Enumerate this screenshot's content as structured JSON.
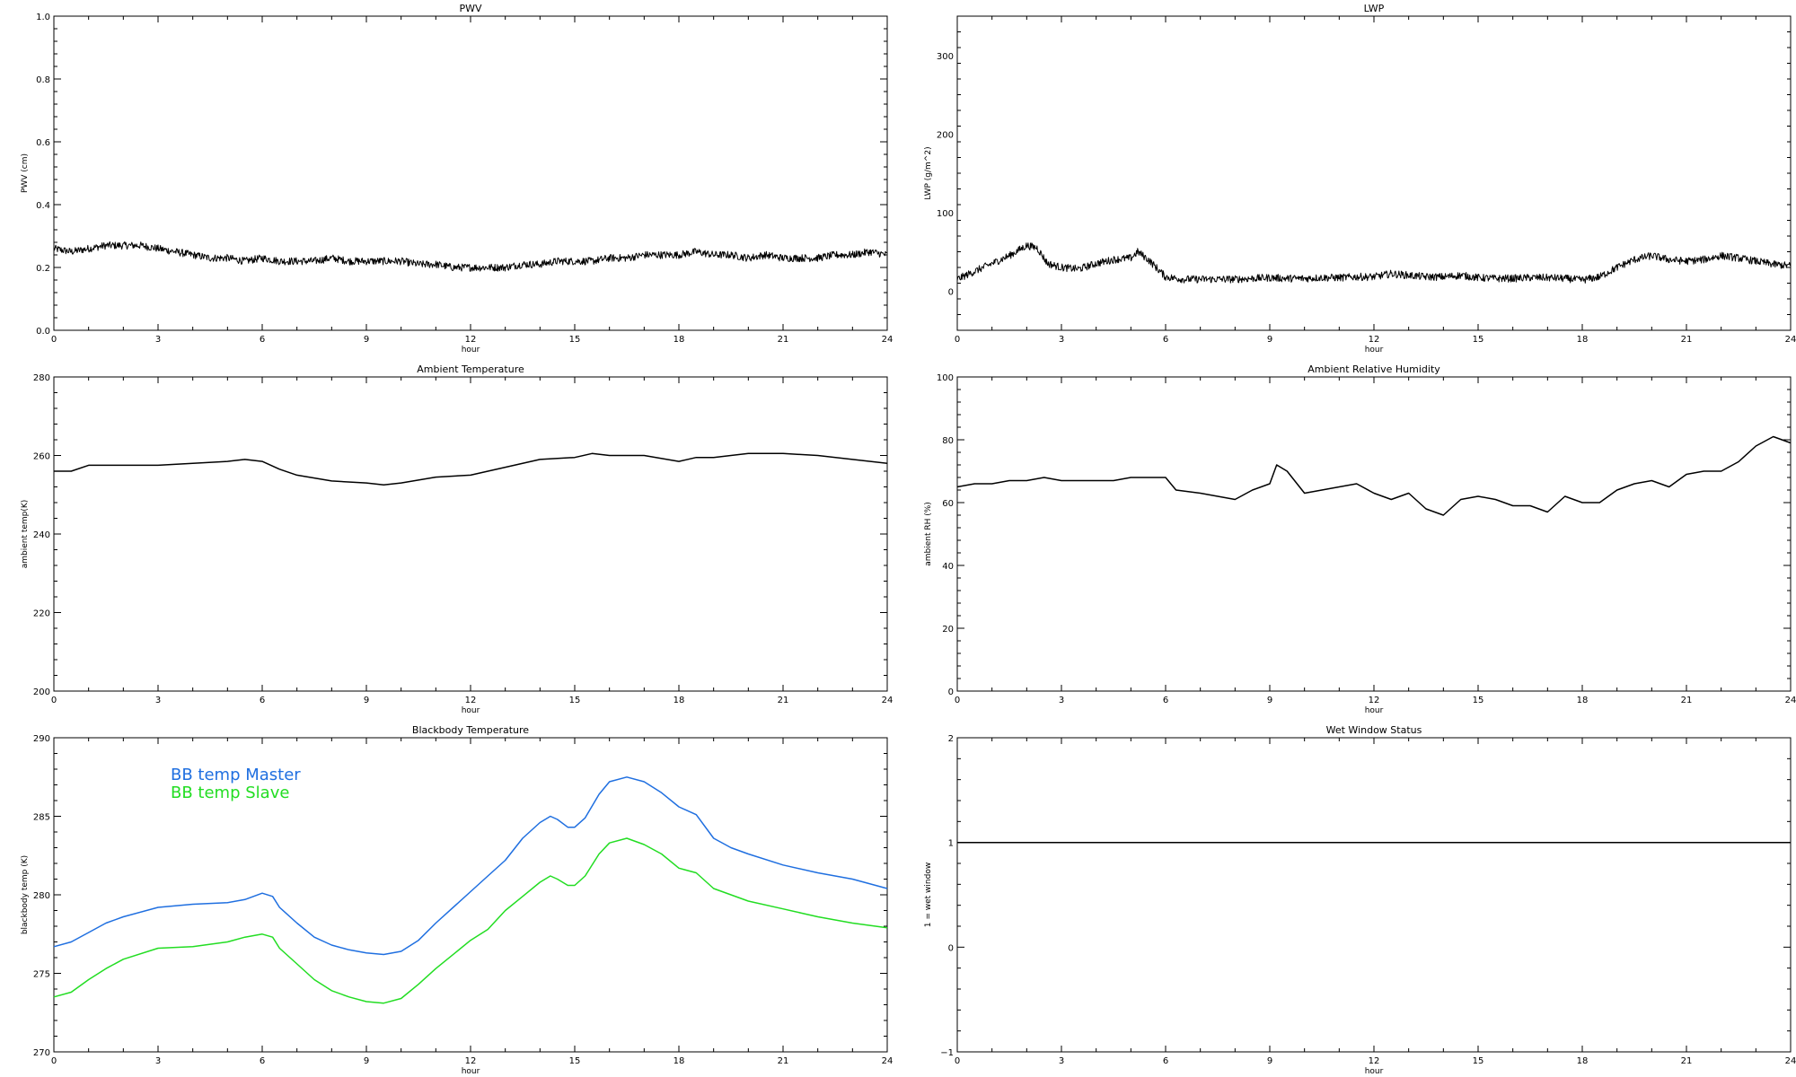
{
  "chart_data": [
    {
      "id": "pwv",
      "type": "line",
      "title": "PWV",
      "xlabel": "hour",
      "ylabel": "PWV (cm)",
      "xlim": [
        0,
        24
      ],
      "ylim": [
        0.0,
        1.0
      ],
      "xticks": [
        0,
        3,
        6,
        9,
        12,
        15,
        18,
        21,
        24
      ],
      "xticklabels": [
        "0",
        "3",
        "6",
        "9",
        "12",
        "15",
        "18",
        "21",
        "24"
      ],
      "yticks": [
        0.0,
        0.2,
        0.4,
        0.6,
        0.8,
        1.0
      ],
      "yticklabels": [
        "0.0",
        "0.2",
        "0.4",
        "0.6",
        "0.8",
        "1.0"
      ],
      "legend": null,
      "series": [
        {
          "color": "#000000",
          "noisy": true,
          "x": [
            0,
            0.5,
            1,
            1.5,
            2,
            2.5,
            3,
            3.5,
            4,
            4.5,
            5,
            5.5,
            6,
            6.5,
            7,
            7.5,
            8,
            8.5,
            9,
            9.5,
            10,
            10.5,
            11,
            11.5,
            12,
            12.5,
            13,
            13.5,
            14,
            14.5,
            15,
            15.5,
            16,
            16.5,
            17,
            17.5,
            18,
            18.5,
            19,
            19.5,
            20,
            20.5,
            21,
            21.5,
            22,
            22.5,
            23,
            23.5,
            24
          ],
          "y": [
            0.26,
            0.25,
            0.26,
            0.27,
            0.27,
            0.27,
            0.26,
            0.25,
            0.24,
            0.23,
            0.23,
            0.22,
            0.23,
            0.22,
            0.22,
            0.22,
            0.23,
            0.22,
            0.22,
            0.22,
            0.22,
            0.21,
            0.21,
            0.2,
            0.2,
            0.2,
            0.2,
            0.21,
            0.21,
            0.22,
            0.22,
            0.22,
            0.23,
            0.23,
            0.24,
            0.24,
            0.24,
            0.25,
            0.24,
            0.24,
            0.23,
            0.24,
            0.23,
            0.23,
            0.23,
            0.24,
            0.24,
            0.25,
            0.24
          ]
        }
      ]
    },
    {
      "id": "lwp",
      "type": "line",
      "title": "LWP",
      "xlabel": "hour",
      "ylabel": "LWP (g/m^2)",
      "xlim": [
        0,
        24
      ],
      "ylim": [
        -50,
        350
      ],
      "xticks": [
        0,
        3,
        6,
        9,
        12,
        15,
        18,
        21,
        24
      ],
      "xticklabels": [
        "0",
        "3",
        "6",
        "9",
        "12",
        "15",
        "18",
        "21",
        "24"
      ],
      "yticks": [
        0,
        100,
        200,
        300
      ],
      "yticklabels": [
        "0",
        "100",
        "200",
        "300"
      ],
      "legend": null,
      "series": [
        {
          "color": "#000000",
          "noisy": true,
          "x": [
            0,
            0.5,
            1,
            1.5,
            2,
            2.3,
            2.6,
            3,
            3.5,
            4,
            4.5,
            5,
            5.2,
            5.5,
            6,
            6.5,
            7,
            7.5,
            8,
            8.5,
            9,
            9.5,
            10,
            10.5,
            11,
            11.5,
            12,
            12.5,
            13,
            13.5,
            14,
            14.5,
            15,
            15.5,
            16,
            16.5,
            17,
            17.5,
            18,
            18.5,
            19,
            19.5,
            20,
            20.5,
            21,
            21.5,
            22,
            22.5,
            23,
            23.5,
            24
          ],
          "y": [
            15,
            25,
            35,
            45,
            58,
            55,
            35,
            30,
            28,
            35,
            40,
            42,
            50,
            40,
            18,
            15,
            15,
            15,
            15,
            16,
            17,
            16,
            16,
            17,
            17,
            18,
            18,
            22,
            20,
            18,
            18,
            20,
            17,
            16,
            16,
            17,
            17,
            16,
            14,
            18,
            30,
            40,
            45,
            40,
            38,
            40,
            45,
            42,
            38,
            34,
            32
          ]
        }
      ]
    },
    {
      "id": "ambient_temp",
      "type": "line",
      "title": "Ambient Temperature",
      "xlabel": "hour",
      "ylabel": "ambient temp(K)",
      "xlim": [
        0,
        24
      ],
      "ylim": [
        200,
        280
      ],
      "xticks": [
        0,
        3,
        6,
        9,
        12,
        15,
        18,
        21,
        24
      ],
      "xticklabels": [
        "0",
        "3",
        "6",
        "9",
        "12",
        "15",
        "18",
        "21",
        "24"
      ],
      "yticks": [
        200,
        220,
        240,
        260,
        280
      ],
      "yticklabels": [
        "200",
        "220",
        "240",
        "260",
        "280"
      ],
      "legend": null,
      "series": [
        {
          "color": "#000000",
          "noisy": false,
          "x": [
            0,
            0.5,
            1,
            1.5,
            2,
            3,
            4,
            5,
            5.5,
            6,
            6.5,
            7,
            8,
            9,
            9.5,
            10,
            11,
            12,
            13,
            14,
            15,
            15.5,
            16,
            17,
            18,
            18.5,
            19,
            20,
            21,
            22,
            23,
            24
          ],
          "y": [
            256,
            256,
            257.5,
            257.5,
            257.5,
            257.5,
            258,
            258.5,
            259,
            258.5,
            256.5,
            255,
            253.5,
            253,
            252.5,
            253,
            254.5,
            255,
            257,
            259,
            259.5,
            260.5,
            260,
            260,
            258.5,
            259.5,
            259.5,
            260.5,
            260.5,
            260,
            259,
            258
          ]
        }
      ]
    },
    {
      "id": "ambient_rh",
      "type": "line",
      "title": "Ambient Relative Humidity",
      "xlabel": "hour",
      "ylabel": "ambient RH (%)",
      "xlim": [
        0,
        24
      ],
      "ylim": [
        0,
        100
      ],
      "xticks": [
        0,
        3,
        6,
        9,
        12,
        15,
        18,
        21,
        24
      ],
      "xticklabels": [
        "0",
        "3",
        "6",
        "9",
        "12",
        "15",
        "18",
        "21",
        "24"
      ],
      "yticks": [
        0,
        20,
        40,
        60,
        80,
        100
      ],
      "yticklabels": [
        "0",
        "20",
        "40",
        "60",
        "80",
        "100"
      ],
      "legend": null,
      "series": [
        {
          "color": "#000000",
          "noisy": false,
          "x": [
            0,
            0.5,
            1,
            1.5,
            2,
            2.5,
            3,
            3.5,
            4,
            4.5,
            5,
            5.5,
            6,
            6.3,
            7,
            7.5,
            8,
            8.5,
            9,
            9.2,
            9.5,
            10,
            10.5,
            11,
            11.5,
            12,
            12.5,
            13,
            13.5,
            14,
            14.5,
            15,
            15.5,
            16,
            16.5,
            17,
            17.5,
            18,
            18.5,
            19,
            19.5,
            20,
            20.5,
            21,
            21.5,
            22,
            22.5,
            23,
            23.5,
            24
          ],
          "y": [
            65,
            66,
            66,
            67,
            67,
            68,
            67,
            67,
            67,
            67,
            68,
            68,
            68,
            64,
            63,
            62,
            61,
            64,
            66,
            72,
            70,
            63,
            64,
            65,
            66,
            63,
            61,
            63,
            58,
            56,
            61,
            62,
            61,
            59,
            59,
            57,
            62,
            60,
            60,
            64,
            66,
            67,
            65,
            69,
            70,
            70,
            73,
            78,
            81,
            79
          ]
        }
      ]
    },
    {
      "id": "blackbody_temp",
      "type": "line",
      "title": "Blackbody Temperature",
      "xlabel": "hour",
      "ylabel": "blackbody temp (K)",
      "xlim": [
        0,
        24
      ],
      "ylim": [
        270,
        290
      ],
      "xticks": [
        0,
        3,
        6,
        9,
        12,
        15,
        18,
        21,
        24
      ],
      "xticklabels": [
        "0",
        "3",
        "6",
        "9",
        "12",
        "15",
        "18",
        "21",
        "24"
      ],
      "yticks": [
        270,
        275,
        280,
        285,
        290
      ],
      "yticklabels": [
        "270",
        "275",
        "280",
        "285",
        "290"
      ],
      "legend": "top-left",
      "series": [
        {
          "name": "BB temp Master",
          "color": "#1f6fe0",
          "noisy": false,
          "x": [
            0,
            0.5,
            1,
            1.5,
            2,
            3,
            4,
            5,
            5.5,
            6,
            6.3,
            6.5,
            7,
            7.5,
            8,
            8.5,
            9,
            9.5,
            10,
            10.5,
            11,
            12,
            12.5,
            13,
            13.5,
            14,
            14.3,
            14.5,
            14.8,
            15,
            15.3,
            15.7,
            16,
            16.5,
            17,
            17.5,
            18,
            18.5,
            19,
            19.5,
            20,
            21,
            22,
            23,
            24
          ],
          "y": [
            276.7,
            277,
            277.6,
            278.2,
            278.6,
            279.2,
            279.4,
            279.5,
            279.7,
            280.1,
            279.9,
            279.2,
            278.2,
            277.3,
            276.8,
            276.5,
            276.3,
            276.2,
            276.4,
            277.1,
            278.2,
            280.2,
            281.2,
            282.2,
            283.6,
            284.6,
            285,
            284.8,
            284.3,
            284.3,
            284.9,
            286.4,
            287.2,
            287.5,
            287.2,
            286.5,
            285.6,
            285.1,
            283.6,
            283,
            282.6,
            281.9,
            281.4,
            281,
            280.4
          ]
        },
        {
          "name": "BB temp Slave",
          "color": "#22dd22",
          "noisy": false,
          "x": [
            0,
            0.5,
            1,
            1.5,
            2,
            3,
            4,
            5,
            5.5,
            6,
            6.3,
            6.5,
            7,
            7.5,
            8,
            8.5,
            9,
            9.5,
            10,
            10.5,
            11,
            12,
            12.5,
            13,
            13.5,
            14,
            14.3,
            14.5,
            14.8,
            15,
            15.3,
            15.7,
            16,
            16.5,
            17,
            17.5,
            18,
            18.5,
            19,
            19.5,
            20,
            21,
            22,
            23,
            24
          ],
          "y": [
            273.5,
            273.8,
            274.6,
            275.3,
            275.9,
            276.6,
            276.7,
            277,
            277.3,
            277.5,
            277.3,
            276.6,
            275.6,
            274.6,
            273.9,
            273.5,
            273.2,
            273.1,
            273.4,
            274.3,
            275.3,
            277.1,
            277.8,
            279,
            279.9,
            280.8,
            281.2,
            281,
            280.6,
            280.6,
            281.2,
            282.6,
            283.3,
            283.6,
            283.2,
            282.6,
            281.7,
            281.4,
            280.4,
            280,
            279.6,
            279.1,
            278.6,
            278.2,
            277.9
          ]
        }
      ]
    },
    {
      "id": "wet_window",
      "type": "line",
      "title": "Wet Window Status",
      "xlabel": "hour",
      "ylabel": "1 = wet window",
      "xlim": [
        0,
        24
      ],
      "ylim": [
        -1,
        2
      ],
      "xticks": [
        0,
        3,
        6,
        9,
        12,
        15,
        18,
        21,
        24
      ],
      "xticklabels": [
        "0",
        "3",
        "6",
        "9",
        "12",
        "15",
        "18",
        "21",
        "24"
      ],
      "yticks": [
        -1,
        0,
        1,
        2
      ],
      "yticklabels": [
        "−1",
        "0",
        "1",
        "2"
      ],
      "legend": null,
      "series": [
        {
          "color": "#000000",
          "noisy": false,
          "x": [
            0,
            24
          ],
          "y": [
            1,
            1
          ]
        }
      ]
    }
  ]
}
